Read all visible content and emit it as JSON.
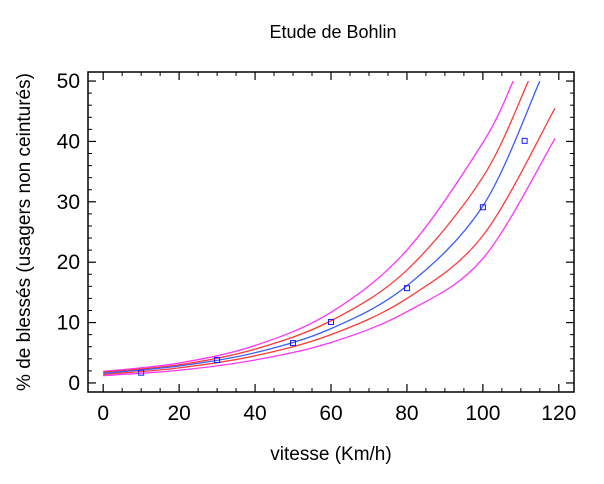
{
  "chart_data": {
    "type": "line",
    "title": "Etude de Bohlin",
    "xlabel": "vitesse (Km/h)",
    "ylabel": "% de blessés (usagers non ceinturés)",
    "xlim": [
      -4,
      124
    ],
    "ylim": [
      -1.5,
      51.5
    ],
    "x_ticks": [
      0,
      20,
      40,
      60,
      80,
      100,
      120
    ],
    "y_ticks": [
      0,
      10,
      20,
      30,
      40,
      50
    ],
    "grid": false,
    "observed": {
      "x": [
        10,
        30,
        50,
        60,
        80,
        100,
        111
      ],
      "y": [
        1.7,
        3.8,
        6.6,
        10.1,
        15.7,
        29.1,
        40.1
      ],
      "color": "#1a1aff"
    },
    "curves": [
      {
        "color": "#ff33ff",
        "x": [
          0,
          20,
          40,
          60,
          80,
          100,
          108
        ],
        "y": [
          1.9,
          3.3,
          6.2,
          11.7,
          22.0,
          39.8,
          50.0
        ]
      },
      {
        "color": "#ff3a3a",
        "x": [
          0,
          20,
          40,
          60,
          80,
          100,
          112
        ],
        "y": [
          1.8,
          3.0,
          5.6,
          10.3,
          18.7,
          34.1,
          50.0
        ]
      },
      {
        "color": "#3a5cff",
        "x": [
          0,
          20,
          40,
          60,
          80,
          100,
          115
        ],
        "y": [
          1.6,
          2.8,
          5.0,
          9.0,
          16.1,
          29.3,
          50.0
        ]
      },
      {
        "color": "#ff3a3a",
        "x": [
          0,
          20,
          40,
          60,
          80,
          100,
          119
        ],
        "y": [
          1.4,
          2.5,
          4.5,
          8.0,
          14.0,
          24.4,
          45.5
        ]
      },
      {
        "color": "#ff33ff",
        "x": [
          0,
          20,
          40,
          60,
          80,
          100,
          119
        ],
        "y": [
          1.2,
          2.1,
          3.8,
          6.7,
          11.8,
          20.6,
          40.5
        ]
      }
    ]
  }
}
